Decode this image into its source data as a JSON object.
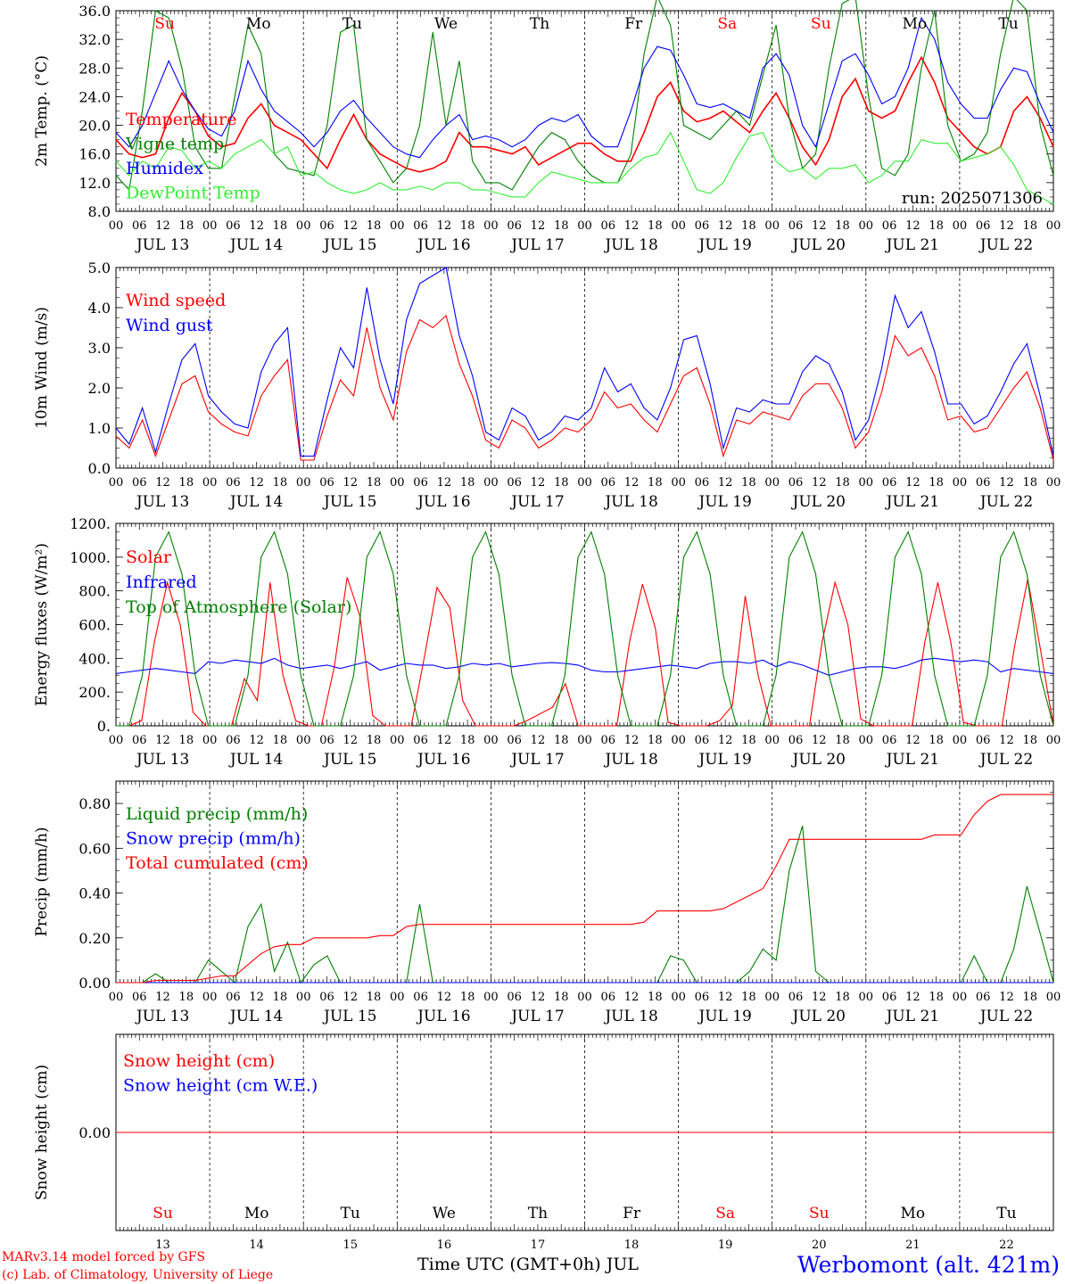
{
  "chart_data": [
    {
      "type": "line",
      "ylabel": "2m Temp. (°C)",
      "ylim": [
        8.0,
        36.0
      ],
      "yticks": [
        "8.0",
        "12.0",
        "16.0",
        "20.0",
        "24.0",
        "28.0",
        "32.0",
        "36.0"
      ],
      "annotation": "run: 2025071306",
      "day_markers": [
        {
          "label": "Su",
          "color": "#ff0000"
        },
        {
          "label": "Mo",
          "color": "#000000"
        },
        {
          "label": "Tu",
          "color": "#000000"
        },
        {
          "label": "We",
          "color": "#000000"
        },
        {
          "label": "Th",
          "color": "#000000"
        },
        {
          "label": "Fr",
          "color": "#000000"
        },
        {
          "label": "Sa",
          "color": "#ff0000"
        },
        {
          "label": "Su",
          "color": "#ff0000"
        },
        {
          "label": "Mo",
          "color": "#000000"
        },
        {
          "label": "Tu",
          "color": "#000000"
        }
      ],
      "series": [
        {
          "name": "Temperature",
          "color": "#ff0000",
          "values": [
            18,
            16,
            15.5,
            16,
            21,
            24.5,
            22,
            18.5,
            17,
            17.5,
            21,
            23,
            20,
            19,
            18,
            16,
            14,
            18,
            21.5,
            18,
            16,
            15,
            14,
            13.5,
            14,
            15,
            19,
            17,
            17,
            16.5,
            16,
            17,
            14.5,
            15.5,
            16.5,
            17.5,
            17.5,
            16,
            15,
            15,
            19,
            24,
            26,
            22,
            20.5,
            21,
            22,
            20.5,
            19,
            22,
            24.5,
            21,
            17,
            14.5,
            18,
            24,
            26.5,
            22,
            21,
            22,
            26,
            29.5,
            26,
            21,
            19,
            17,
            16,
            17,
            22,
            24,
            21,
            17
          ]
        },
        {
          "name": "Vigne temp",
          "color": "#008000",
          "values": [
            13,
            11,
            22,
            36,
            35,
            28,
            17,
            14,
            14,
            24,
            34,
            30,
            16,
            14,
            13.5,
            13,
            20,
            33,
            34,
            18,
            15,
            12,
            14,
            20,
            33,
            20,
            29,
            15,
            12,
            12,
            11,
            14,
            17,
            19,
            18,
            15,
            13,
            12,
            12,
            16,
            30,
            38,
            34,
            20,
            19,
            18,
            20,
            22,
            20,
            27,
            34,
            21,
            14,
            16,
            28,
            37,
            38,
            24,
            14,
            13,
            16,
            28,
            36,
            20,
            15,
            16,
            19,
            30,
            38,
            36,
            20,
            13
          ]
        },
        {
          "name": "Humidex",
          "color": "#0000ff",
          "values": [
            19,
            17,
            20,
            24.5,
            29,
            25,
            22,
            19.5,
            18.5,
            22,
            29,
            25,
            22,
            20.5,
            19,
            17,
            19,
            22,
            23.5,
            21,
            19,
            17,
            16,
            15.5,
            18,
            20,
            21.5,
            18,
            18.5,
            18,
            17,
            18,
            20,
            21,
            20.5,
            21.5,
            18.5,
            17,
            17,
            22,
            28,
            31,
            30.5,
            27,
            23,
            22.5,
            23,
            22,
            21,
            28,
            30,
            27,
            20,
            17,
            23,
            29,
            30,
            27,
            23,
            24,
            28,
            35,
            32,
            26,
            23,
            21,
            21,
            25,
            28,
            27.5,
            23,
            19
          ]
        },
        {
          "name": "DewPoint Temp",
          "color": "#33ee33",
          "values": [
            15,
            13,
            15,
            14,
            17,
            16.5,
            14,
            15,
            14,
            16,
            17,
            18,
            16,
            17,
            13,
            13.5,
            12,
            11,
            10.5,
            11,
            12,
            11,
            11,
            11.5,
            11,
            12,
            12,
            11,
            11,
            10.5,
            10,
            10,
            12,
            13.5,
            13,
            12.5,
            12,
            12,
            12,
            14,
            15.5,
            16,
            19,
            15,
            11,
            10.5,
            12,
            15.5,
            18.5,
            19,
            15,
            13.5,
            14,
            12.5,
            14,
            14,
            14.5,
            12,
            13,
            15,
            15,
            18,
            17.5,
            17.5,
            15,
            15.5,
            16,
            17,
            14.5,
            11,
            10,
            9
          ]
        }
      ]
    },
    {
      "type": "line",
      "ylabel": "10m Wind (m/s)",
      "ylim": [
        0.0,
        5.0
      ],
      "yticks": [
        "0.0",
        "1.0",
        "2.0",
        "3.0",
        "4.0",
        "5.0"
      ],
      "series": [
        {
          "name": "Wind speed",
          "color": "#ff0000",
          "values": [
            0.8,
            0.5,
            1.2,
            0.3,
            1.2,
            2.1,
            2.3,
            1.4,
            1.1,
            0.9,
            0.8,
            1.8,
            2.3,
            2.7,
            0.2,
            0.2,
            1.3,
            2.2,
            1.8,
            3.5,
            2.0,
            1.2,
            2.9,
            3.7,
            3.5,
            3.8,
            2.6,
            1.8,
            0.7,
            0.5,
            1.2,
            1.0,
            0.5,
            0.7,
            1.0,
            0.9,
            1.2,
            1.9,
            1.5,
            1.6,
            1.2,
            0.9,
            1.6,
            2.3,
            2.5,
            1.6,
            0.3,
            1.2,
            1.1,
            1.4,
            1.3,
            1.2,
            1.8,
            2.1,
            2.1,
            1.5,
            0.5,
            0.9,
            1.9,
            3.3,
            2.8,
            3.0,
            2.3,
            1.2,
            1.3,
            0.9,
            1.0,
            1.5,
            2.0,
            2.4,
            1.5,
            0.2
          ]
        },
        {
          "name": "Wind gust",
          "color": "#0000ff",
          "values": [
            1.0,
            0.6,
            1.5,
            0.4,
            1.6,
            2.7,
            3.1,
            1.8,
            1.4,
            1.1,
            1.0,
            2.4,
            3.1,
            3.5,
            0.3,
            0.3,
            1.7,
            3.0,
            2.5,
            4.5,
            2.7,
            1.6,
            3.7,
            4.6,
            4.8,
            5.0,
            3.3,
            2.3,
            0.9,
            0.7,
            1.5,
            1.3,
            0.7,
            0.9,
            1.3,
            1.2,
            1.5,
            2.5,
            1.9,
            2.1,
            1.5,
            1.2,
            2.0,
            3.2,
            3.3,
            2.1,
            0.5,
            1.5,
            1.4,
            1.7,
            1.6,
            1.6,
            2.4,
            2.8,
            2.6,
            1.9,
            0.7,
            1.2,
            2.5,
            4.3,
            3.5,
            3.9,
            2.9,
            1.6,
            1.6,
            1.1,
            1.3,
            1.9,
            2.6,
            3.1,
            1.8,
            0.3
          ]
        }
      ]
    },
    {
      "type": "line",
      "ylabel": "Energy fluxes (W/m²)",
      "ylim": [
        0,
        1200
      ],
      "yticks": [
        "0.",
        "200.",
        "400.",
        "600.",
        "800.",
        "1000.",
        "1200."
      ],
      "series": [
        {
          "name": "Solar",
          "color": "#ff0000",
          "values": [
            0,
            0,
            30,
            500,
            850,
            600,
            80,
            0,
            0,
            0,
            280,
            150,
            850,
            300,
            30,
            0,
            0,
            350,
            880,
            650,
            60,
            0,
            0,
            0,
            400,
            820,
            700,
            150,
            0,
            0,
            0,
            0,
            30,
            70,
            110,
            250,
            0,
            0,
            0,
            0,
            500,
            840,
            580,
            20,
            0,
            0,
            0,
            30,
            120,
            770,
            300,
            0,
            0,
            0,
            0,
            500,
            850,
            600,
            40,
            0,
            0,
            0,
            0,
            500,
            850,
            500,
            20,
            0,
            0,
            0,
            480,
            870,
            450,
            0
          ]
        },
        {
          "name": "Infrared",
          "color": "#0000ff",
          "values": [
            310,
            320,
            330,
            340,
            330,
            320,
            310,
            380,
            370,
            390,
            380,
            370,
            400,
            360,
            340,
            350,
            360,
            340,
            360,
            380,
            330,
            350,
            370,
            360,
            360,
            340,
            350,
            370,
            360,
            370,
            350,
            360,
            370,
            375,
            370,
            360,
            330,
            320,
            320,
            330,
            340,
            350,
            360,
            350,
            340,
            370,
            380,
            380,
            370,
            390,
            350,
            380,
            360,
            330,
            300,
            320,
            340,
            350,
            350,
            340,
            360,
            390,
            400,
            390,
            380,
            390,
            380,
            320,
            340,
            330,
            320,
            310
          ]
        },
        {
          "name": "Top of Atmosphere (Solar)",
          "color": "#008000",
          "values": [
            0,
            0,
            300,
            1000,
            1150,
            900,
            300,
            0,
            0,
            0,
            300,
            1000,
            1150,
            900,
            300,
            0,
            0,
            0,
            300,
            1000,
            1150,
            900,
            300,
            0,
            0,
            0,
            300,
            1000,
            1150,
            900,
            300,
            0,
            0,
            0,
            300,
            1000,
            1150,
            900,
            300,
            0,
            0,
            0,
            300,
            1000,
            1150,
            900,
            300,
            0,
            0,
            0,
            300,
            1000,
            1150,
            900,
            300,
            0,
            0,
            0,
            300,
            1000,
            1150,
            900,
            300,
            0,
            0,
            0,
            300,
            1000,
            1150,
            900,
            300,
            0
          ]
        }
      ]
    },
    {
      "type": "line",
      "ylabel": "Precip (mm/h)",
      "ylim": [
        0,
        0.9
      ],
      "yticks": [
        "0.00",
        "0.20",
        "0.40",
        "0.60",
        "0.80"
      ],
      "series": [
        {
          "name": "Liquid precip (mm/h)",
          "color": "#008000",
          "values": [
            0,
            0,
            0,
            0.04,
            0,
            0,
            0,
            0.1,
            0.05,
            0,
            0.25,
            0.35,
            0.05,
            0.18,
            0,
            0.08,
            0.12,
            0,
            0,
            0,
            0,
            0,
            0,
            0.35,
            0,
            0,
            0,
            0,
            0,
            0,
            0,
            0,
            0,
            0,
            0,
            0,
            0,
            0,
            0,
            0,
            0,
            0,
            0.12,
            0.1,
            0,
            0,
            0,
            0,
            0.05,
            0.15,
            0.1,
            0.5,
            0.7,
            0.05,
            0,
            0,
            0,
            0,
            0,
            0,
            0,
            0,
            0,
            0,
            0,
            0.12,
            0,
            0,
            0.15,
            0.43,
            0.22,
            0
          ]
        },
        {
          "name": "Snow precip (mm/h)",
          "color": "#0000ff",
          "values": [
            0,
            0,
            0,
            0,
            0,
            0,
            0,
            0,
            0,
            0,
            0,
            0,
            0,
            0,
            0,
            0,
            0,
            0,
            0,
            0,
            0,
            0,
            0,
            0,
            0,
            0,
            0,
            0,
            0,
            0,
            0,
            0,
            0,
            0,
            0,
            0,
            0,
            0,
            0,
            0,
            0,
            0,
            0,
            0,
            0,
            0,
            0,
            0,
            0,
            0,
            0,
            0,
            0,
            0,
            0,
            0,
            0,
            0,
            0,
            0,
            0,
            0,
            0,
            0,
            0,
            0,
            0,
            0,
            0,
            0,
            0,
            0
          ]
        },
        {
          "name": "Total cumulated (cm)",
          "color": "#ff0000",
          "values": [
            0,
            0,
            0,
            0.01,
            0.01,
            0.01,
            0.01,
            0.02,
            0.03,
            0.03,
            0.08,
            0.13,
            0.16,
            0.17,
            0.17,
            0.2,
            0.2,
            0.2,
            0.2,
            0.2,
            0.21,
            0.21,
            0.25,
            0.26,
            0.26,
            0.26,
            0.26,
            0.26,
            0.26,
            0.26,
            0.26,
            0.26,
            0.26,
            0.26,
            0.26,
            0.26,
            0.26,
            0.26,
            0.26,
            0.26,
            0.27,
            0.32,
            0.32,
            0.32,
            0.32,
            0.32,
            0.33,
            0.36,
            0.39,
            0.42,
            0.52,
            0.64,
            0.64,
            0.64,
            0.64,
            0.64,
            0.64,
            0.64,
            0.64,
            0.64,
            0.64,
            0.64,
            0.66,
            0.66,
            0.66,
            0.75,
            0.81,
            0.84,
            0.84,
            0.84,
            0.84,
            0.84
          ]
        }
      ]
    },
    {
      "type": "line",
      "ylabel": "Snow height (cm)",
      "yticks": [
        "0.00"
      ],
      "series": [
        {
          "name": "Snow height (cm)",
          "color": "#ff0000",
          "values": [
            0,
            0
          ]
        },
        {
          "name": "Snow height (cm W.E.)",
          "color": "#0000ff",
          "values": [
            0,
            0
          ]
        }
      ],
      "day_markers": [
        {
          "label": "Su",
          "color": "#ff0000"
        },
        {
          "label": "Mo",
          "color": "#000000"
        },
        {
          "label": "Tu",
          "color": "#000000"
        },
        {
          "label": "We",
          "color": "#000000"
        },
        {
          "label": "Th",
          "color": "#000000"
        },
        {
          "label": "Fr",
          "color": "#000000"
        },
        {
          "label": "Sa",
          "color": "#ff0000"
        },
        {
          "label": "Su",
          "color": "#ff0000"
        },
        {
          "label": "Mo",
          "color": "#000000"
        },
        {
          "label": "Tu",
          "color": "#000000"
        }
      ],
      "day_numbers": [
        "13",
        "14",
        "15",
        "16",
        "17",
        "18",
        "19",
        "20",
        "21",
        "22"
      ]
    }
  ],
  "x_axis": {
    "hour_labels": [
      "00",
      "06",
      "12",
      "18"
    ],
    "final_hour_label": "00",
    "dates": [
      "JUL 13",
      "JUL 14",
      "JUL 15",
      "JUL 16",
      "JUL 17",
      "JUL 18",
      "JUL 19",
      "JUL 20",
      "JUL 21",
      "JUL 22"
    ],
    "xlabel": "Time UTC (GMT+0h) JUL"
  },
  "footer": {
    "credit_line1": "MARv3.14 model forced by GFS",
    "credit_line2": "(c) Lab. of Climatology, University of Liege",
    "station": "Werbomont (alt. 421m)"
  }
}
